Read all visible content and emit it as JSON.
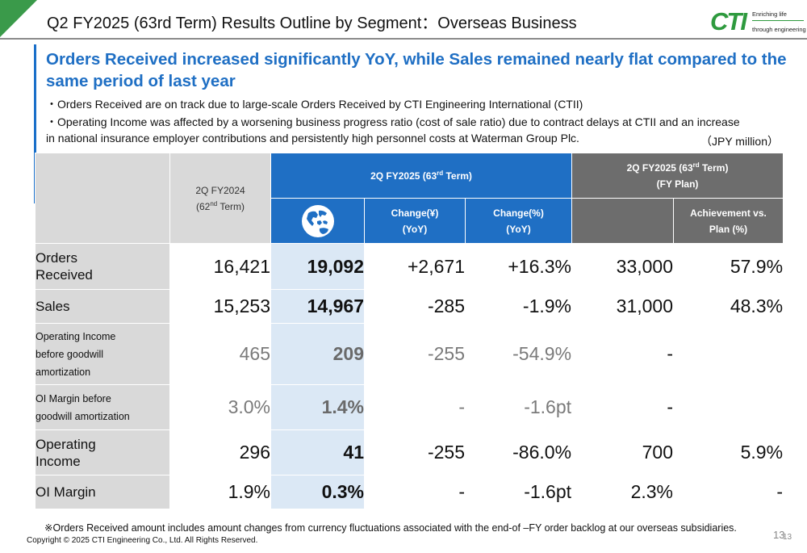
{
  "header": {
    "title": "Q2 FY2025 (63rd Term) Results Outline by Segment：Overseas Business",
    "logo_mark": "CTI",
    "logo_tagline_1": "Enriching life",
    "logo_tagline_2": "through engineering",
    "accent_color": "#3a9a4a"
  },
  "headline": "Orders Received increased significantly YoY, while Sales remained nearly flat compared to the same period of last year",
  "bullets": [
    "・Orders Received are on track due to large-scale Orders Received by CTI Engineering International (CTII)",
    "・Operating Income was affected by a worsening business progress ratio (cost of sale ratio) due to contract delays at CTII and an increase",
    "in national insurance employer contributions and persistently high personnel costs at Waterman Group Plc."
  ],
  "unit_note": "（JPY million）",
  "table": {
    "head": {
      "prev_line1": "2Q FY2024",
      "prev_line2_pre": "(62",
      "prev_line2_sup": "nd",
      "prev_line2_post": " Term)",
      "cur_pre": "2Q FY2025 (63",
      "cur_sup": "rd",
      "cur_post": " Term)",
      "plan_line1_pre": "2Q FY2025 (63",
      "plan_line1_sup": "rd",
      "plan_line1_post": " Term)",
      "plan_line2": "(FY Plan)",
      "chg_yen_1": "Change(¥)",
      "chg_yen_2": "(YoY)",
      "chg_pct_1": "Change(%)",
      "chg_pct_2": "(YoY)",
      "ach_1": "Achievement vs.",
      "ach_2": "Plan (%)",
      "globe_icon": "globe-asia-icon"
    },
    "rows": [
      {
        "label_1": "Orders",
        "label_2": "Received",
        "label_3": "",
        "prev": "16,421",
        "cur": "19,092",
        "chg_yen": "+2,671",
        "chg_pct": "+16.3%",
        "plan": "33,000",
        "ach": "57.9%"
      },
      {
        "label_1": "Sales",
        "label_2": "",
        "label_3": "",
        "prev": "15,253",
        "cur": "14,967",
        "chg_yen": "-285",
        "chg_pct": "-1.9%",
        "plan": "31,000",
        "ach": "48.3%"
      },
      {
        "label_1": "Operating Income",
        "label_2": "before goodwill",
        "label_3": "amortization",
        "prev": "465",
        "cur": "209",
        "chg_yen": "-255",
        "chg_pct": "-54.9%",
        "plan": "-",
        "ach": ""
      },
      {
        "label_1": "OI Margin before",
        "label_2": "goodwill amortization",
        "label_3": "",
        "prev": "3.0%",
        "cur": "1.4%",
        "chg_yen": "-",
        "chg_pct": "-1.6pt",
        "plan": "-",
        "ach": ""
      },
      {
        "label_1": "Operating",
        "label_2": "Income",
        "label_3": "",
        "prev": "296",
        "cur": "41",
        "chg_yen": "-255",
        "chg_pct": "-86.0%",
        "plan": "700",
        "ach": "5.9%"
      },
      {
        "label_1": "OI Margin",
        "label_2": "",
        "label_3": "",
        "prev": "1.9%",
        "cur": "0.3%",
        "chg_yen": "-",
        "chg_pct": "-1.6pt",
        "plan": "2.3%",
        "ach": "-"
      }
    ]
  },
  "footnote": "※Orders Received amount includes amount changes from currency fluctuations associated with the end-of –FY order backlog at our overseas subsidiaries.",
  "copyright": "Copyright © 2025 CTI Engineering Co., Ltd. All Rights Reserved.",
  "page_number": "13",
  "page_number_small": "13",
  "colors": {
    "blue": "#1f6fc4",
    "gray_header": "#6d6d6d",
    "light_gray": "#d9d9d9",
    "light_blue": "#dbe8f5"
  }
}
